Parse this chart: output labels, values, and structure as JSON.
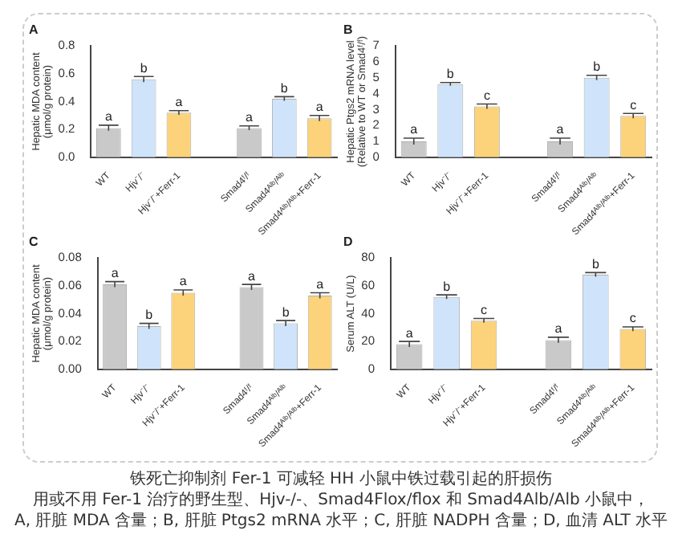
{
  "chart_data": [
    {
      "type": "bar",
      "title": "A",
      "ylabel": "Hepatic MDA content\n(μmol/g protein)",
      "categories": [
        "WT",
        "Hjv⁻/⁻",
        "Hjv⁻/⁻+Ferr-1",
        null,
        "Smad4ᶠ/ᶠ",
        "Smad4ᴬˡᵇ/ᴬˡᵇ",
        "Smad4ᴬˡᵇ/ᴬˡᵇ+Ferr-1"
      ],
      "values": [
        0.21,
        0.56,
        0.32,
        null,
        0.21,
        0.42,
        0.28
      ],
      "errors": [
        0.02,
        0.02,
        0.015,
        null,
        0.015,
        0.015,
        0.02
      ],
      "value_labels": [
        "a",
        "b",
        "a",
        null,
        "a",
        "b",
        "a"
      ],
      "colors": [
        "#c9c9c9",
        "#cfe4fa",
        "#fcd27a",
        "#ffffff",
        "#c9c9c9",
        "#cfe4fa",
        "#fcd27a"
      ],
      "ylim": [
        0,
        0.8
      ],
      "yticks": [
        {
          "value": 0,
          "label": "0.0"
        },
        {
          "value": 0.2,
          "label": "0.2"
        },
        {
          "value": 0.4,
          "label": "0.4"
        },
        {
          "value": 0.6,
          "label": "0.6"
        },
        {
          "value": 0.8,
          "label": "0.8"
        }
      ]
    },
    {
      "type": "bar",
      "title": "B",
      "ylabel": "Hepatic Ptgs2 mRNA level\n(Relative to WT or Smad4ᶠ/ᶠ)",
      "categories": [
        "WT",
        "Hjv⁻/⁻",
        "Hjv⁻/⁻+Ferr-1",
        null,
        "Smad4ᶠ/ᶠ",
        "Smad4ᴬˡᵇ/ᴬˡᵇ",
        "Smad4ᴬˡᵇ/ᴬˡᵇ+Ferr-1"
      ],
      "values": [
        1.0,
        4.6,
        3.2,
        null,
        1.0,
        5.0,
        2.6
      ],
      "errors": [
        0.2,
        0.1,
        0.15,
        null,
        0.2,
        0.15,
        0.15
      ],
      "value_labels": [
        "a",
        "b",
        "c",
        null,
        "a",
        "b",
        "c"
      ],
      "colors": [
        "#c9c9c9",
        "#cfe4fa",
        "#fcd27a",
        "#ffffff",
        "#c9c9c9",
        "#cfe4fa",
        "#fcd27a"
      ],
      "ylim": [
        0,
        7
      ],
      "yticks": [
        0,
        1,
        2,
        3,
        4,
        5,
        6,
        7
      ]
    },
    {
      "type": "bar",
      "title": "C",
      "ylabel": "Hepatic MDA content\n(μmol/g protein)",
      "categories": [
        "WT",
        "Hjv⁻/⁻",
        "Hjv⁻/⁻+Ferr-1",
        null,
        "Smad4ᶠ/ᶠ",
        "Smad4ᴬˡᵇ/ᴬˡᵇ",
        "Smad4ᴬˡᵇ/ᴬˡᵇ+Ferr-1"
      ],
      "values": [
        0.061,
        0.031,
        0.055,
        null,
        0.059,
        0.033,
        0.053
      ],
      "errors": [
        0.002,
        0.002,
        0.002,
        null,
        0.002,
        0.002,
        0.002
      ],
      "value_labels": [
        "a",
        "b",
        "a",
        null,
        "a",
        "b",
        "a"
      ],
      "colors": [
        "#c9c9c9",
        "#cfe4fa",
        "#fcd27a",
        "#ffffff",
        "#c9c9c9",
        "#cfe4fa",
        "#fcd27a"
      ],
      "ylim": [
        0,
        0.08
      ],
      "yticks": [
        {
          "value": 0,
          "label": "0.00"
        },
        {
          "value": 0.02,
          "label": "0.02"
        },
        {
          "value": 0.04,
          "label": "0.04"
        },
        {
          "value": 0.06,
          "label": "0.06"
        },
        {
          "value": 0.08,
          "label": "0.08"
        }
      ]
    },
    {
      "type": "bar",
      "title": "D",
      "ylabel": "Serum ALT (U/L)",
      "categories": [
        "WT",
        "Hjv⁻/⁻",
        "Hjv⁻/⁻+Ferr-1",
        null,
        "Smad4ᶠ/ᶠ",
        "Smad4ᴬˡᵇ/ᴬˡᵇ",
        "Smad4ᴬˡᵇ/ᴬˡᵇ+Ferr-1"
      ],
      "values": [
        18,
        52,
        35,
        null,
        21,
        68,
        29
      ],
      "errors": [
        2,
        1.5,
        1.5,
        null,
        2,
        1.5,
        1.5
      ],
      "value_labels": [
        "a",
        "b",
        "c",
        null,
        "a",
        "b",
        "c"
      ],
      "colors": [
        "#c9c9c9",
        "#cfe4fa",
        "#fcd27a",
        "#ffffff",
        "#c9c9c9",
        "#cfe4fa",
        "#fcd27a"
      ],
      "ylim": [
        0,
        80
      ],
      "yticks": [
        0,
        20,
        40,
        60,
        80
      ]
    },
    {
      "type": "other",
      "title": "铁死亡抑制剂 Fer-1 可减轻 HH 小鼠中铁过载引起的肝损伤",
      "annotations": [
        "用或不用 Fer-1 治疗的野生型、Hjv-/-、Smad4Flox/flox 和 Smad4Alb/Alb 小鼠中，",
        "A, 肝脏 MDA 含量；B, 肝脏 Ptgs2 mRNA 水平；C, 肝脏 NADPH 含量；D, 血清 ALT 水平"
      ]
    }
  ]
}
